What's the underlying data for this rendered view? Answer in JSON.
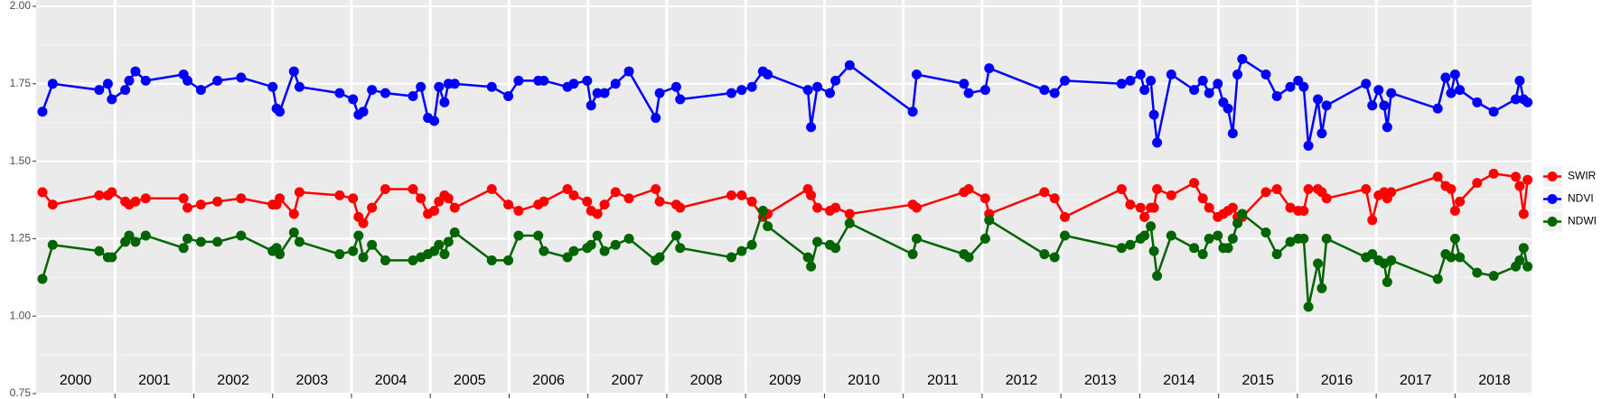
{
  "chart_data": {
    "type": "line",
    "x": [
      2000.08,
      2000.21,
      2000.8,
      2000.91,
      2000.96,
      2001.13,
      2001.18,
      2001.26,
      2001.39,
      2001.87,
      2001.92,
      2002.09,
      2002.3,
      2002.6,
      2003.0,
      2003.05,
      2003.09,
      2003.27,
      2003.34,
      2003.85,
      2004.02,
      2004.09,
      2004.15,
      2004.26,
      2004.43,
      2004.78,
      2004.88,
      2004.97,
      2005.05,
      2005.11,
      2005.18,
      2005.23,
      2005.31,
      2005.78,
      2005.99,
      2006.12,
      2006.37,
      2006.44,
      2006.74,
      2006.82,
      2006.99,
      2007.04,
      2007.12,
      2007.21,
      2007.35,
      2007.52,
      2007.86,
      2007.91,
      2008.12,
      2008.17,
      2008.82,
      2008.95,
      2009.08,
      2009.22,
      2009.28,
      2009.79,
      2009.83,
      2009.91,
      2010.07,
      2010.14,
      2010.32,
      2011.12,
      2011.17,
      2011.77,
      2011.83,
      2012.04,
      2012.09,
      2012.79,
      2012.92,
      2013.05,
      2013.77,
      2013.88,
      2014.01,
      2014.06,
      2014.14,
      2014.18,
      2014.22,
      2014.4,
      2014.69,
      2014.8,
      2014.88,
      2014.99,
      2015.06,
      2015.12,
      2015.18,
      2015.24,
      2015.3,
      2015.6,
      2015.74,
      2015.91,
      2016.01,
      2016.08,
      2016.14,
      2016.26,
      2016.31,
      2016.37,
      2016.87,
      2016.95,
      2017.03,
      2017.1,
      2017.14,
      2017.19,
      2017.78,
      2017.88,
      2017.95,
      2018.0,
      2018.06,
      2018.28,
      2018.49,
      2018.77,
      2018.82,
      2018.87,
      2018.92
    ],
    "series": [
      {
        "name": "SWIR",
        "color": "#ff0000",
        "values": [
          1.4,
          1.36,
          1.39,
          1.39,
          1.4,
          1.37,
          1.36,
          1.37,
          1.38,
          1.38,
          1.35,
          1.36,
          1.37,
          1.38,
          1.36,
          1.36,
          1.38,
          1.33,
          1.4,
          1.39,
          1.38,
          1.32,
          1.3,
          1.35,
          1.41,
          1.41,
          1.38,
          1.33,
          1.34,
          1.37,
          1.39,
          1.38,
          1.35,
          1.41,
          1.36,
          1.34,
          1.36,
          1.37,
          1.41,
          1.39,
          1.37,
          1.34,
          1.33,
          1.36,
          1.4,
          1.38,
          1.41,
          1.37,
          1.36,
          1.35,
          1.39,
          1.39,
          1.37,
          1.32,
          1.33,
          1.41,
          1.39,
          1.35,
          1.34,
          1.35,
          1.33,
          1.36,
          1.35,
          1.4,
          1.41,
          1.38,
          1.33,
          1.4,
          1.38,
          1.32,
          1.41,
          1.36,
          1.35,
          1.32,
          1.35,
          1.35,
          1.41,
          1.39,
          1.43,
          1.38,
          1.35,
          1.32,
          1.33,
          1.34,
          1.35,
          1.32,
          1.32,
          1.4,
          1.41,
          1.35,
          1.34,
          1.34,
          1.41,
          1.41,
          1.4,
          1.38,
          1.41,
          1.31,
          1.39,
          1.4,
          1.38,
          1.4,
          1.45,
          1.42,
          1.41,
          1.34,
          1.37,
          1.43,
          1.46,
          1.45,
          1.42,
          1.33,
          1.44
        ]
      },
      {
        "name": "NDVI",
        "color": "#0000ff",
        "values": [
          1.66,
          1.75,
          1.73,
          1.75,
          1.7,
          1.73,
          1.76,
          1.79,
          1.76,
          1.78,
          1.76,
          1.73,
          1.76,
          1.77,
          1.74,
          1.67,
          1.66,
          1.79,
          1.74,
          1.72,
          1.7,
          1.65,
          1.66,
          1.73,
          1.72,
          1.71,
          1.74,
          1.64,
          1.63,
          1.74,
          1.69,
          1.75,
          1.75,
          1.74,
          1.71,
          1.76,
          1.76,
          1.76,
          1.74,
          1.75,
          1.76,
          1.68,
          1.72,
          1.72,
          1.75,
          1.79,
          1.64,
          1.72,
          1.74,
          1.7,
          1.72,
          1.73,
          1.74,
          1.79,
          1.78,
          1.73,
          1.61,
          1.74,
          1.72,
          1.76,
          1.81,
          1.66,
          1.78,
          1.75,
          1.72,
          1.73,
          1.8,
          1.73,
          1.72,
          1.76,
          1.75,
          1.76,
          1.78,
          1.73,
          1.76,
          1.65,
          1.56,
          1.78,
          1.73,
          1.76,
          1.72,
          1.75,
          1.69,
          1.67,
          1.59,
          1.78,
          1.83,
          1.78,
          1.71,
          1.74,
          1.76,
          1.74,
          1.55,
          1.7,
          1.59,
          1.68,
          1.75,
          1.68,
          1.73,
          1.68,
          1.61,
          1.72,
          1.67,
          1.77,
          1.72,
          1.78,
          1.73,
          1.69,
          1.66,
          1.7,
          1.76,
          1.7,
          1.69
        ]
      },
      {
        "name": "NDWI",
        "color": "#006400",
        "values": [
          1.12,
          1.23,
          1.21,
          1.19,
          1.19,
          1.24,
          1.26,
          1.24,
          1.26,
          1.22,
          1.25,
          1.24,
          1.24,
          1.26,
          1.21,
          1.22,
          1.2,
          1.27,
          1.24,
          1.2,
          1.21,
          1.26,
          1.19,
          1.23,
          1.18,
          1.18,
          1.19,
          1.2,
          1.21,
          1.23,
          1.2,
          1.24,
          1.27,
          1.18,
          1.18,
          1.26,
          1.26,
          1.21,
          1.19,
          1.21,
          1.22,
          1.23,
          1.26,
          1.21,
          1.23,
          1.25,
          1.18,
          1.19,
          1.26,
          1.22,
          1.19,
          1.21,
          1.23,
          1.34,
          1.29,
          1.19,
          1.16,
          1.24,
          1.23,
          1.22,
          1.3,
          1.2,
          1.25,
          1.2,
          1.19,
          1.25,
          1.31,
          1.2,
          1.19,
          1.26,
          1.22,
          1.23,
          1.25,
          1.26,
          1.29,
          1.21,
          1.13,
          1.26,
          1.22,
          1.2,
          1.25,
          1.26,
          1.22,
          1.22,
          1.25,
          1.3,
          1.33,
          1.27,
          1.2,
          1.24,
          1.25,
          1.25,
          1.03,
          1.17,
          1.09,
          1.25,
          1.19,
          1.2,
          1.18,
          1.17,
          1.11,
          1.18,
          1.12,
          1.2,
          1.19,
          1.25,
          1.19,
          1.14,
          1.13,
          1.16,
          1.18,
          1.22,
          1.16
        ]
      }
    ],
    "xlim": [
      2000,
      2018.97
    ],
    "year_boundaries": [
      2001,
      2002,
      2003,
      2004,
      2005,
      2006,
      2007,
      2008,
      2009,
      2010,
      2011,
      2012,
      2013,
      2014,
      2015,
      2016,
      2017,
      2018
    ],
    "year_labels": [
      {
        "value": 2000.5,
        "label": "2000"
      },
      {
        "value": 2001.5,
        "label": "2001"
      },
      {
        "value": 2002.5,
        "label": "2002"
      },
      {
        "value": 2003.5,
        "label": "2003"
      },
      {
        "value": 2004.5,
        "label": "2004"
      },
      {
        "value": 2005.5,
        "label": "2005"
      },
      {
        "value": 2006.5,
        "label": "2006"
      },
      {
        "value": 2007.5,
        "label": "2007"
      },
      {
        "value": 2008.5,
        "label": "2008"
      },
      {
        "value": 2009.5,
        "label": "2009"
      },
      {
        "value": 2010.5,
        "label": "2010"
      },
      {
        "value": 2011.5,
        "label": "2011"
      },
      {
        "value": 2012.5,
        "label": "2012"
      },
      {
        "value": 2013.5,
        "label": "2013"
      },
      {
        "value": 2014.5,
        "label": "2014"
      },
      {
        "value": 2015.5,
        "label": "2015"
      },
      {
        "value": 2016.5,
        "label": "2016"
      },
      {
        "value": 2017.5,
        "label": "2017"
      },
      {
        "value": 2018.5,
        "label": "2018"
      }
    ],
    "ylim": [
      0.75,
      2.0
    ],
    "yticks": [
      {
        "value": 0.75,
        "label": "0.75"
      },
      {
        "value": 1.0,
        "label": "1.00"
      },
      {
        "value": 1.25,
        "label": "1.25"
      },
      {
        "value": 1.5,
        "label": "1.50"
      },
      {
        "value": 1.75,
        "label": "1.75"
      },
      {
        "value": 2.0,
        "label": "2.00"
      }
    ],
    "grid": true,
    "legend": "right"
  }
}
